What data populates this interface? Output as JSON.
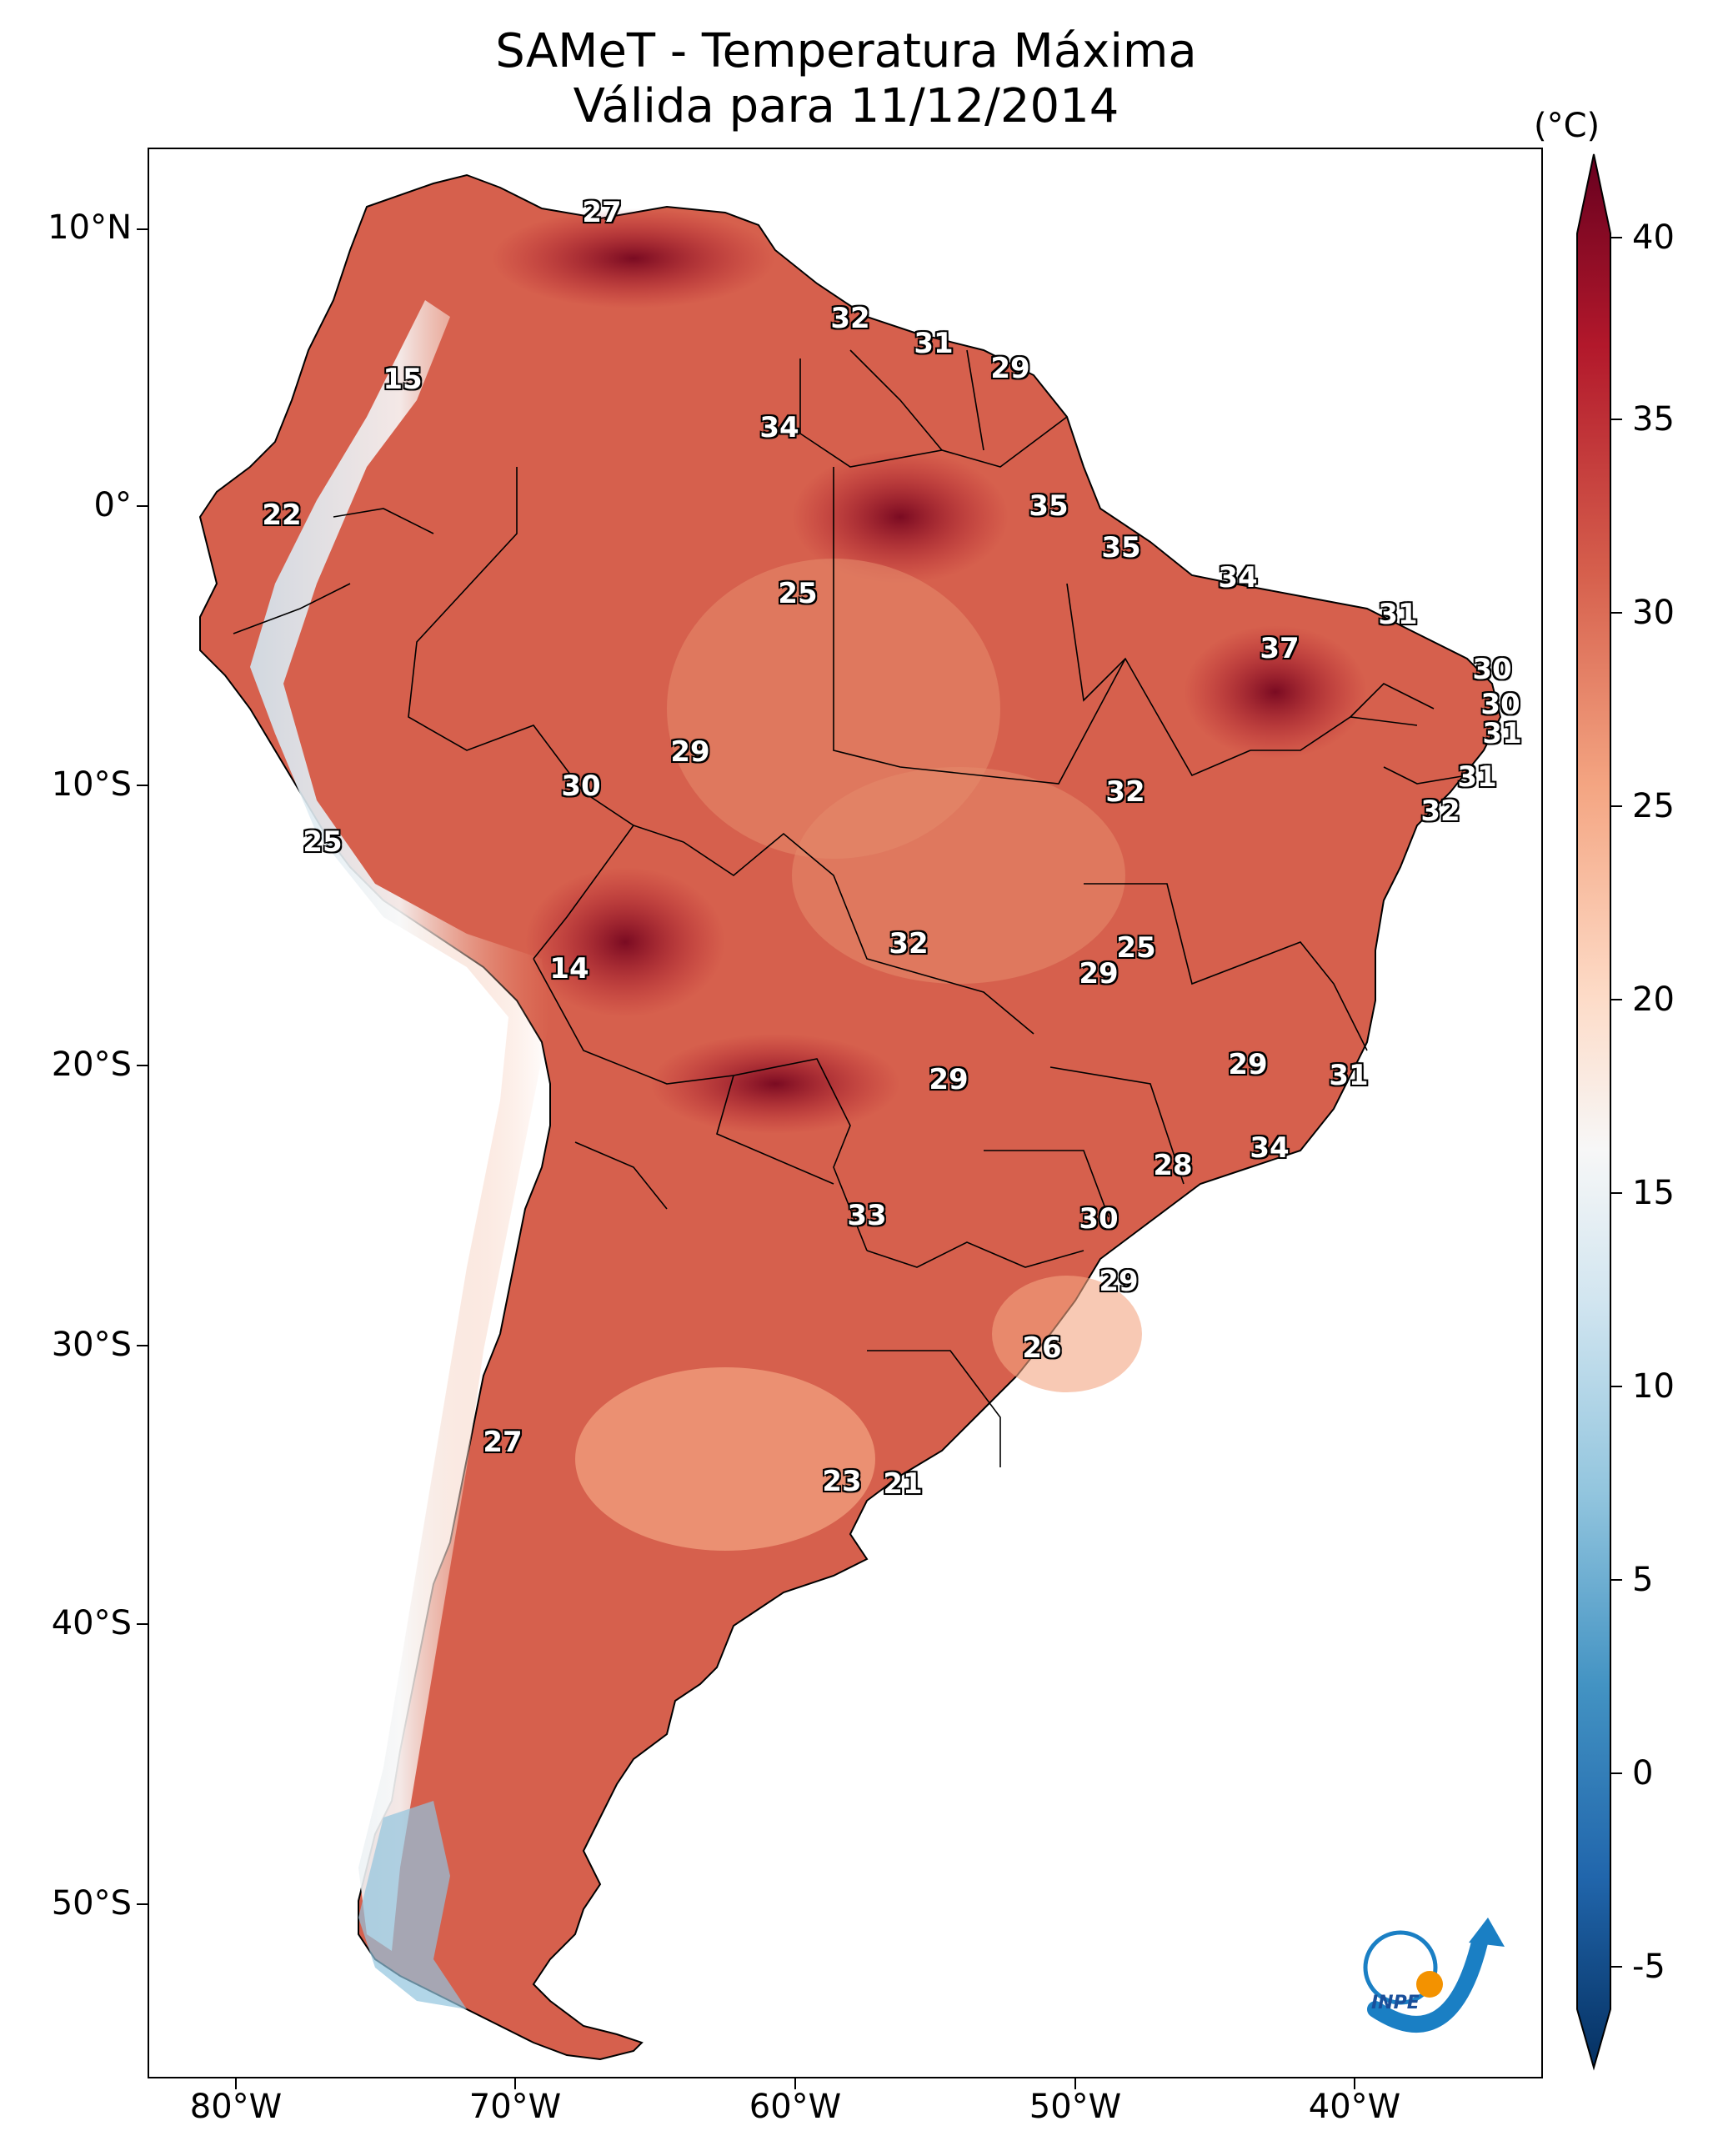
{
  "title_line1": "SAMeT - Temperatura Máxima",
  "title_line2": "Válida para 11/12/2014",
  "colorbar": {
    "unit": "(°C)",
    "ticks": [
      "40",
      "35",
      "30",
      "25",
      "20",
      "15",
      "10",
      "5",
      "0",
      "-5"
    ],
    "min": -5,
    "max": 40,
    "colors": [
      "#053061",
      "#2166ac",
      "#4393c3",
      "#92c5de",
      "#d1e5f0",
      "#f7f7f7",
      "#fddbc7",
      "#f4a582",
      "#d6604d",
      "#b2182b",
      "#67001f"
    ]
  },
  "axes": {
    "lat_labels": [
      "10°N",
      "0°",
      "10°S",
      "20°S",
      "30°S",
      "40°S",
      "50°S"
    ],
    "lon_labels": [
      "80°W",
      "70°W",
      "60°W",
      "50°W",
      "40°W"
    ]
  },
  "city_values": [
    "27",
    "32",
    "31",
    "29",
    "15",
    "34",
    "22",
    "35",
    "35",
    "25",
    "34",
    "31",
    "37",
    "30",
    "30",
    "31",
    "31",
    "32",
    "29",
    "30",
    "32",
    "25",
    "25",
    "29",
    "14",
    "32",
    "29",
    "29",
    "31",
    "34",
    "28",
    "33",
    "30",
    "29",
    "26",
    "27",
    "23",
    "21"
  ],
  "logo": {
    "text": "INPE"
  }
}
